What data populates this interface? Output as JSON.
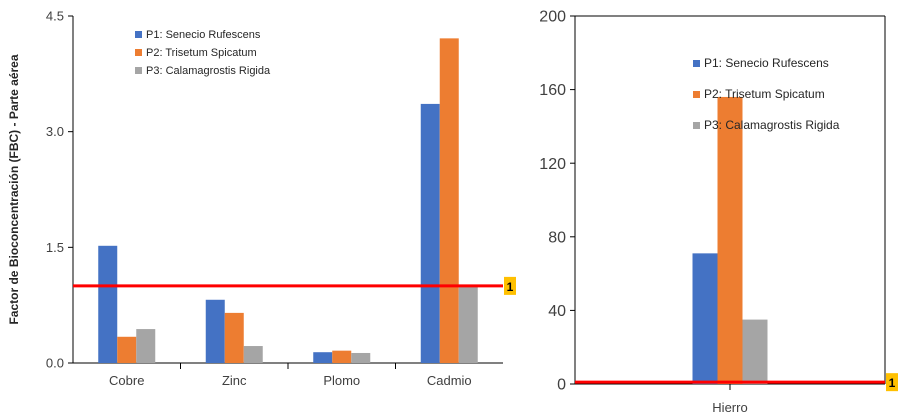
{
  "ref_line_label": "1",
  "colors": {
    "series": [
      "#4472C4",
      "#ED7D31",
      "#A5A5A5"
    ],
    "ref_line": "#FF0000",
    "ref_badge": "#FFC000",
    "axis": "#808080"
  },
  "chart_data": [
    {
      "type": "bar",
      "ylabel": "Factor de Bioconcentración (FBC) - Parte aérea",
      "xlabel": "",
      "categories": [
        "Cobre",
        "Zinc",
        "Plomo",
        "Cadmio"
      ],
      "ylim": [
        0,
        4.5
      ],
      "yticks": [
        "0.0",
        "1.5",
        "3.0",
        "4.5"
      ],
      "ytick_values": [
        0,
        1.5,
        3.0,
        4.5
      ],
      "reference_line": 1,
      "legend_position": "top-left",
      "grid": false,
      "series": [
        {
          "name": "P1:  Senecio Rufescens",
          "values": [
            1.52,
            0.82,
            0.14,
            3.36
          ]
        },
        {
          "name": "P2: Trisetum Spicatum",
          "values": [
            0.34,
            0.65,
            0.16,
            4.21
          ]
        },
        {
          "name": "P3: Calamagrostis Rigida",
          "values": [
            0.44,
            0.22,
            0.13,
            0.99
          ]
        }
      ]
    },
    {
      "type": "bar",
      "ylabel": "",
      "xlabel": "",
      "categories": [
        "Hierro"
      ],
      "ylim": [
        0,
        200
      ],
      "yticks": [
        "0",
        "40",
        "80",
        "120",
        "160",
        "200"
      ],
      "ytick_values": [
        0,
        40,
        80,
        120,
        160,
        200
      ],
      "reference_line": 1,
      "legend_position": "top-right",
      "grid": false,
      "series": [
        {
          "name": "P1:  Senecio Rufescens",
          "values": [
            71
          ]
        },
        {
          "name": "P2: Trisetum Spicatum",
          "values": [
            156
          ]
        },
        {
          "name": "P3: Calamagrostis Rigida",
          "values": [
            35
          ]
        }
      ]
    }
  ]
}
